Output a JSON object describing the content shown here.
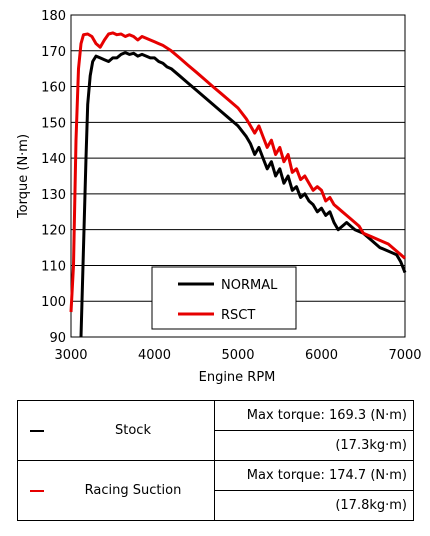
{
  "chart_data": {
    "type": "line",
    "xlabel": "Engine RPM",
    "ylabel": "Torque (N·m)",
    "xlim": [
      3000,
      7000
    ],
    "ylim": [
      90,
      180
    ],
    "xticks": [
      3000,
      4000,
      5000,
      6000,
      7000
    ],
    "yticks": [
      90,
      100,
      110,
      120,
      130,
      140,
      150,
      160,
      170,
      180
    ],
    "grid": "horizontal",
    "legend_position": "bottom-center",
    "series": [
      {
        "name": "NORMAL",
        "color": "#000000",
        "points": [
          [
            3120,
            90
          ],
          [
            3150,
            115
          ],
          [
            3180,
            140
          ],
          [
            3200,
            155
          ],
          [
            3230,
            163
          ],
          [
            3260,
            167
          ],
          [
            3300,
            168.5
          ],
          [
            3350,
            168
          ],
          [
            3400,
            167.5
          ],
          [
            3450,
            167
          ],
          [
            3500,
            168
          ],
          [
            3550,
            168
          ],
          [
            3600,
            169
          ],
          [
            3650,
            169.5
          ],
          [
            3700,
            169
          ],
          [
            3750,
            169.3
          ],
          [
            3800,
            168.5
          ],
          [
            3850,
            169
          ],
          [
            3900,
            168.5
          ],
          [
            3950,
            168
          ],
          [
            4000,
            168
          ],
          [
            4050,
            167
          ],
          [
            4100,
            166.5
          ],
          [
            4150,
            165.5
          ],
          [
            4200,
            165
          ],
          [
            4300,
            163
          ],
          [
            4400,
            161
          ],
          [
            4500,
            159
          ],
          [
            4600,
            157
          ],
          [
            4700,
            155
          ],
          [
            4800,
            153
          ],
          [
            4900,
            151
          ],
          [
            5000,
            149
          ],
          [
            5100,
            146
          ],
          [
            5150,
            144
          ],
          [
            5200,
            141
          ],
          [
            5250,
            143
          ],
          [
            5300,
            140
          ],
          [
            5350,
            137
          ],
          [
            5400,
            139
          ],
          [
            5450,
            135
          ],
          [
            5500,
            137
          ],
          [
            5550,
            133
          ],
          [
            5600,
            135
          ],
          [
            5650,
            131
          ],
          [
            5700,
            132
          ],
          [
            5750,
            129
          ],
          [
            5800,
            130
          ],
          [
            5850,
            128
          ],
          [
            5900,
            127
          ],
          [
            5950,
            125
          ],
          [
            6000,
            126
          ],
          [
            6050,
            124
          ],
          [
            6100,
            125
          ],
          [
            6150,
            122
          ],
          [
            6200,
            120
          ],
          [
            6250,
            121
          ],
          [
            6300,
            122
          ],
          [
            6400,
            120
          ],
          [
            6500,
            119
          ],
          [
            6600,
            117
          ],
          [
            6700,
            115
          ],
          [
            6800,
            114
          ],
          [
            6900,
            113
          ],
          [
            6950,
            111
          ],
          [
            7000,
            108
          ]
        ]
      },
      {
        "name": "RSCT",
        "color": "#e60000",
        "points": [
          [
            3000,
            97
          ],
          [
            3030,
            110
          ],
          [
            3060,
            145
          ],
          [
            3090,
            165
          ],
          [
            3120,
            172
          ],
          [
            3150,
            174.5
          ],
          [
            3200,
            174.7
          ],
          [
            3250,
            174
          ],
          [
            3300,
            172
          ],
          [
            3350,
            171
          ],
          [
            3400,
            173
          ],
          [
            3450,
            174.7
          ],
          [
            3500,
            175
          ],
          [
            3550,
            174.5
          ],
          [
            3600,
            174.7
          ],
          [
            3650,
            174
          ],
          [
            3700,
            174.5
          ],
          [
            3750,
            174
          ],
          [
            3800,
            173
          ],
          [
            3850,
            174
          ],
          [
            3900,
            173.5
          ],
          [
            3950,
            173
          ],
          [
            4000,
            172.5
          ],
          [
            4050,
            172
          ],
          [
            4100,
            171.5
          ],
          [
            4200,
            170
          ],
          [
            4300,
            168
          ],
          [
            4400,
            166
          ],
          [
            4500,
            164
          ],
          [
            4600,
            162
          ],
          [
            4700,
            160
          ],
          [
            4800,
            158
          ],
          [
            4900,
            156
          ],
          [
            5000,
            154
          ],
          [
            5100,
            151
          ],
          [
            5150,
            149
          ],
          [
            5200,
            147
          ],
          [
            5250,
            149
          ],
          [
            5300,
            146
          ],
          [
            5350,
            143
          ],
          [
            5400,
            145
          ],
          [
            5450,
            141
          ],
          [
            5500,
            143
          ],
          [
            5550,
            139
          ],
          [
            5600,
            141
          ],
          [
            5650,
            136
          ],
          [
            5700,
            137
          ],
          [
            5750,
            134
          ],
          [
            5800,
            135
          ],
          [
            5850,
            133
          ],
          [
            5900,
            131
          ],
          [
            5950,
            132
          ],
          [
            6000,
            131
          ],
          [
            6050,
            128
          ],
          [
            6100,
            129
          ],
          [
            6150,
            127
          ],
          [
            6200,
            126
          ],
          [
            6250,
            125
          ],
          [
            6300,
            124
          ],
          [
            6350,
            123
          ],
          [
            6400,
            122
          ],
          [
            6450,
            121
          ],
          [
            6500,
            119
          ],
          [
            6600,
            118
          ],
          [
            6700,
            117
          ],
          [
            6800,
            116
          ],
          [
            6900,
            114
          ],
          [
            6950,
            113
          ],
          [
            7000,
            112
          ]
        ]
      }
    ]
  },
  "summary": {
    "rows": [
      {
        "name": "Stock",
        "color": "#000000",
        "max_torque": "Max torque: 169.3 (N·m)",
        "max_torque_kg": "(17.3kg·m)"
      },
      {
        "name": "Racing Suction",
        "color": "#e60000",
        "max_torque": "Max torque: 174.7 (N·m)",
        "max_torque_kg": "(17.8kg·m)"
      }
    ]
  }
}
